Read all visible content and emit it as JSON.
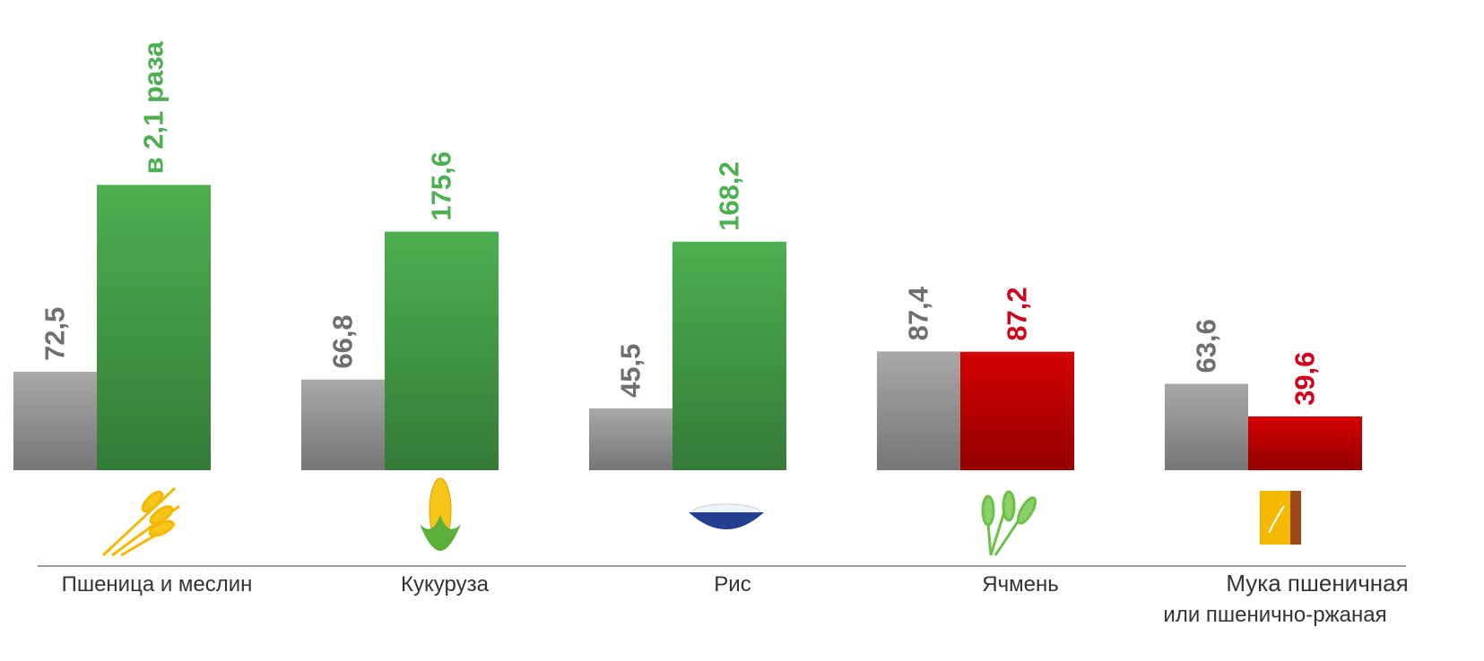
{
  "chart_data": {
    "type": "bar",
    "categories": [
      "Пшеница и меслин",
      "Кукуруза",
      "Рис",
      "Ячмень",
      "Мука пшеничная"
    ],
    "category_sublabels": [
      null,
      null,
      null,
      null,
      "или пшенично-ржаная"
    ],
    "series": [
      {
        "color": "#a8a8a8",
        "label_color": "#6f6f6f",
        "values": [
          72.5,
          66.8,
          45.5,
          87.4,
          63.6
        ],
        "value_labels": [
          "72,5",
          "66,8",
          "45,5",
          "87,4",
          "63,6"
        ]
      },
      {
        "colors": [
          "#4caf50",
          "#4caf50",
          "#4caf50",
          "#d40000",
          "#d40000"
        ],
        "label_colors": [
          "#4caf50",
          "#4caf50",
          "#4caf50",
          "#d0021b",
          "#d0021b"
        ],
        "values": [
          210,
          175.6,
          168.2,
          87.2,
          39.6
        ],
        "value_labels": [
          "в 2,1 раза",
          "175,6",
          "168,2",
          "87,2",
          "39,6"
        ]
      }
    ],
    "ylim": [
      0,
      240
    ]
  }
}
